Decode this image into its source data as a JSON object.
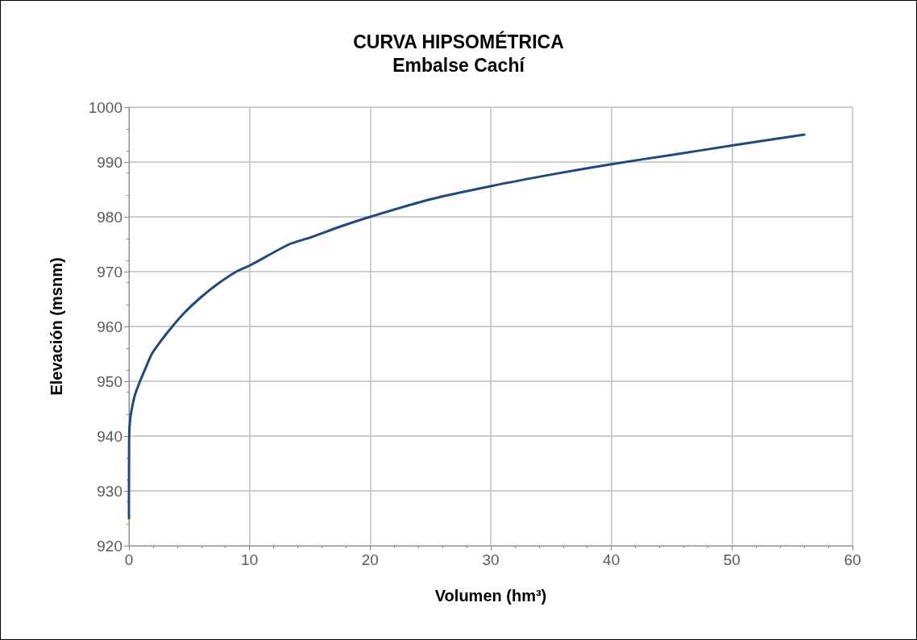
{
  "chart_data": {
    "type": "line",
    "title": "CURVA HIPSOMÉTRICA",
    "subtitle": "Embalse Cachí",
    "xlabel": "Volumen (hm³)",
    "ylabel": "Elevación (msnm)",
    "series": [
      {
        "color": "#1f497d",
        "x": [
          0,
          0,
          0.01,
          0.02,
          0.1,
          0.24,
          0.5,
          0.92,
          1.4,
          1.9,
          2.7,
          3.6,
          4.6,
          5.8,
          7.2,
          8.9,
          10,
          13.3,
          15,
          17.5,
          20,
          25,
          30,
          35,
          40,
          45,
          50,
          56
        ],
        "values": [
          925,
          930,
          935,
          940,
          943,
          945,
          947.5,
          950,
          952.5,
          955,
          957.5,
          960,
          962.5,
          965,
          967.5,
          970,
          971.1,
          975,
          976.2,
          978.2,
          980,
          983.2,
          985.6,
          987.7,
          989.6,
          991.3,
          993,
          995
        ]
      }
    ],
    "xlim": [
      0,
      60
    ],
    "xticks": [
      0,
      10,
      20,
      30,
      40,
      50,
      60
    ],
    "ylim": [
      920,
      1000
    ],
    "yticks": [
      920,
      930,
      940,
      950,
      960,
      970,
      980,
      990,
      1000
    ],
    "grid": true,
    "marker": "none",
    "line_style": "solid"
  }
}
